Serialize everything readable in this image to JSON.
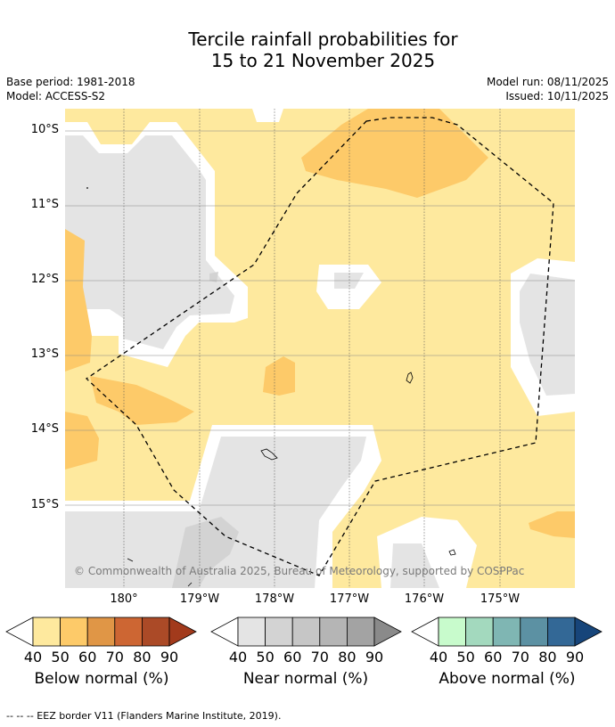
{
  "title_line1": "Tercile rainfall probabilities for",
  "title_line2": "15 to 21 November 2025",
  "base_period": "Base period: 1981-2018",
  "model": "Model: ACCESS-S2",
  "model_run": "Model run: 08/11/2025",
  "issued": "Issued: 10/11/2025",
  "map": {
    "lat_labels": [
      "10°S",
      "11°S",
      "12°S",
      "13°S",
      "14°S",
      "15°S"
    ],
    "lon_labels": [
      "180°",
      "179°W",
      "178°W",
      "177°W",
      "176°W",
      "175°W"
    ],
    "copyright": "© Commonwealth of Australia 2025, Bureau of Meteorology, supported by COSPPac",
    "palette": {
      "below_40": "#fee99e",
      "below_50": "#fdca69",
      "near": "#e4e4e4",
      "near_50": "#d3d3d3"
    }
  },
  "colorbars": [
    {
      "title": "Below normal (%)",
      "ticks": [
        "40",
        "50",
        "60",
        "70",
        "80",
        "90"
      ],
      "colors": [
        "#fee99e",
        "#fdca69",
        "#e09646",
        "#cd6633",
        "#ab4a27",
        "#a23a1c"
      ]
    },
    {
      "title": "Near normal (%)",
      "ticks": [
        "40",
        "50",
        "60",
        "70",
        "80",
        "90"
      ],
      "colors": [
        "#e4e4e4",
        "#d3d3d3",
        "#c6c6c6",
        "#b5b5b5",
        "#a3a3a3",
        "#8a8a8a"
      ]
    },
    {
      "title": "Above normal (%)",
      "ticks": [
        "40",
        "50",
        "60",
        "70",
        "80",
        "90"
      ],
      "colors": [
        "#c8fbcc",
        "#a3d9be",
        "#7fb6b3",
        "#5c91a3",
        "#336896",
        "#17457a"
      ]
    }
  ],
  "footer": "--  --  -- EEZ border V11 (Flanders Marine Institute, 2019)."
}
